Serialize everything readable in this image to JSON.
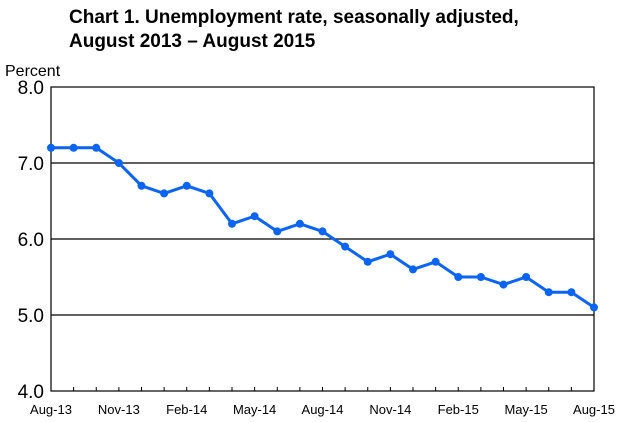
{
  "chart_data": {
    "type": "line",
    "title_line1": "Chart 1. Unemployment rate, seasonally adjusted,",
    "title_line2": "August 2013 – August 2015",
    "ylabel": "Percent",
    "xlabel": "",
    "ylim": [
      4.0,
      8.0
    ],
    "yticks": [
      "8.0",
      "7.0",
      "6.0",
      "5.0",
      "4.0"
    ],
    "ytick_values": [
      8,
      7,
      6,
      5,
      4
    ],
    "grid": "horizontal",
    "x": [
      "Aug-13",
      "Sep-13",
      "Oct-13",
      "Nov-13",
      "Dec-13",
      "Jan-14",
      "Feb-14",
      "Mar-14",
      "Apr-14",
      "May-14",
      "Jun-14",
      "Jul-14",
      "Aug-14",
      "Sep-14",
      "Oct-14",
      "Nov-14",
      "Dec-14",
      "Jan-15",
      "Feb-15",
      "Mar-15",
      "Apr-15",
      "May-15",
      "Jun-15",
      "Jul-15",
      "Aug-15"
    ],
    "xtick_labels": [
      "Aug-13",
      "Nov-13",
      "Feb-14",
      "May-14",
      "Aug-14",
      "Nov-14",
      "Feb-15",
      "May-15",
      "Aug-15"
    ],
    "series": [
      {
        "values": [
          7.2,
          7.2,
          7.2,
          7.0,
          6.7,
          6.6,
          6.7,
          6.6,
          6.2,
          6.3,
          6.1,
          6.2,
          6.1,
          5.9,
          5.7,
          5.8,
          5.6,
          5.7,
          5.5,
          5.5,
          5.4,
          5.5,
          5.3,
          5.3,
          5.1
        ],
        "color": "#0a64f5"
      }
    ]
  }
}
